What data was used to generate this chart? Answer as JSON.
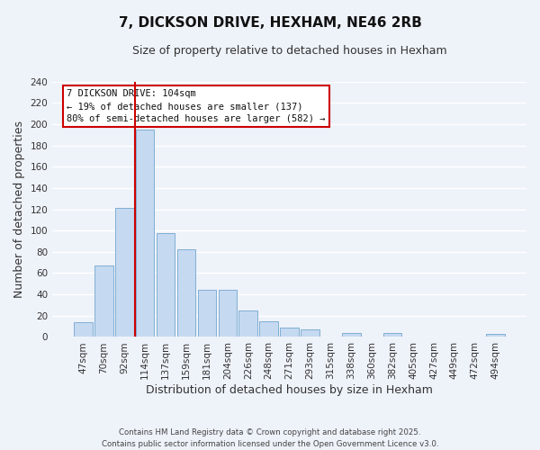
{
  "title": "7, DICKSON DRIVE, HEXHAM, NE46 2RB",
  "subtitle": "Size of property relative to detached houses in Hexham",
  "xlabel": "Distribution of detached houses by size in Hexham",
  "ylabel": "Number of detached properties",
  "bar_labels": [
    "47sqm",
    "70sqm",
    "92sqm",
    "114sqm",
    "137sqm",
    "159sqm",
    "181sqm",
    "204sqm",
    "226sqm",
    "248sqm",
    "271sqm",
    "293sqm",
    "315sqm",
    "338sqm",
    "360sqm",
    "382sqm",
    "405sqm",
    "427sqm",
    "449sqm",
    "472sqm",
    "494sqm"
  ],
  "bar_values": [
    14,
    67,
    121,
    195,
    98,
    82,
    44,
    44,
    25,
    15,
    9,
    7,
    0,
    4,
    0,
    4,
    0,
    0,
    0,
    0,
    3
  ],
  "bar_color": "#c5d9f1",
  "bar_edge_color": "#7fafd4",
  "vline_color": "#cc0000",
  "annotation_line1": "7 DICKSON DRIVE: 104sqm",
  "annotation_line2": "← 19% of detached houses are smaller (137)",
  "annotation_line3": "80% of semi-detached houses are larger (582) →",
  "annotation_box_color": "#ffffff",
  "annotation_box_edge": "#cc0000",
  "ylim": [
    0,
    240
  ],
  "yticks": [
    0,
    20,
    40,
    60,
    80,
    100,
    120,
    140,
    160,
    180,
    200,
    220,
    240
  ],
  "footer_line1": "Contains HM Land Registry data © Crown copyright and database right 2025.",
  "footer_line2": "Contains public sector information licensed under the Open Government Licence v3.0.",
  "bg_color": "#eef2f9",
  "plot_bg_color": "#eef2f9",
  "grid_color": "#ffffff",
  "title_fontsize": 11,
  "subtitle_fontsize": 9,
  "tick_fontsize": 7.5,
  "ylabel_fontsize": 9,
  "xlabel_fontsize": 9
}
